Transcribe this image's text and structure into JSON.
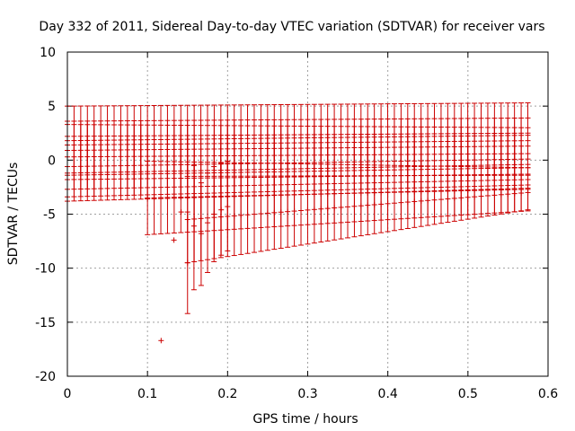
{
  "chart_data": {
    "type": "scatter",
    "title": "Day 332 of 2011, Sidereal Day-to-day VTEC variation (SDTVAR) for receiver vars",
    "xlabel": "GPS time / hours",
    "ylabel": "SDTVAR / TECUs",
    "xlim": [
      0,
      0.6
    ],
    "ylim": [
      -20,
      10
    ],
    "xticks": [
      "0",
      "0.1",
      "0.2",
      "0.3",
      "0.4",
      "0.5",
      "0.6"
    ],
    "yticks": [
      "-20",
      "-15",
      "-10",
      "-5",
      "0",
      "5",
      "10"
    ],
    "grid": true,
    "marker": "+",
    "error_bars": true,
    "color": "#cc0000",
    "series": [
      {
        "name": "SDTVAR",
        "points": [
          {
            "x": 0.117,
            "y": -16.7
          },
          {
            "x": 0.133,
            "y": -7.4
          },
          {
            "x": 0.142,
            "y": -4.8
          },
          {
            "x": 0.15,
            "y": -9.5,
            "ylow": -14.2,
            "yhigh": -4.8
          },
          {
            "x": 0.158,
            "y": -6.1,
            "ylow": -12.0,
            "yhigh": -0.5
          },
          {
            "x": 0.167,
            "y": -6.8,
            "ylow": -11.6,
            "yhigh": -2.1
          },
          {
            "x": 0.175,
            "y": -5.8,
            "ylow": -10.4,
            "yhigh": -1.2
          },
          {
            "x": 0.183,
            "y": -5.0,
            "ylow": -9.4,
            "yhigh": -0.6
          },
          {
            "x": 0.192,
            "y": -4.6,
            "ylow": -8.8,
            "yhigh": -0.3
          },
          {
            "x": 0.2,
            "y": -4.3,
            "ylow": -8.4,
            "yhigh": -0.1
          }
        ],
        "groups": [
          {
            "x_start": 0.0,
            "x_end": 0.575,
            "step": 0.00833,
            "y_start": 1.8,
            "y_end": 2.3,
            "err_start": 3.2,
            "err_end": 3.0
          },
          {
            "x_start": 0.0,
            "x_end": 0.575,
            "step": 0.00833,
            "y_start": 0.9,
            "y_end": 1.3,
            "err_start": 2.7,
            "err_end": 2.6
          },
          {
            "x_start": 0.0,
            "x_end": 0.575,
            "step": 0.00833,
            "y_start": 0.3,
            "y_end": 0.6,
            "err_start": 3.0,
            "err_end": 2.4
          },
          {
            "x_start": 0.0,
            "x_end": 0.575,
            "step": 0.00833,
            "y_start": -0.6,
            "y_end": 0.1,
            "err_start": 2.8,
            "err_end": 2.4
          },
          {
            "x_start": 0.0,
            "x_end": 0.575,
            "step": 0.00833,
            "y_start": -1.2,
            "y_end": -0.4,
            "err_start": 2.6,
            "err_end": 2.2
          },
          {
            "x_start": 0.1,
            "x_end": 0.575,
            "step": 0.00833,
            "y_start": -3.5,
            "y_end": -2.7,
            "err_start": 3.4,
            "err_end": 2.0
          },
          {
            "x_start": 0.15,
            "x_end": 0.575,
            "step": 0.00833,
            "y_start": -5.5,
            "y_end": -3.0,
            "err_start": 4.0,
            "err_end": 1.6
          }
        ]
      }
    ]
  }
}
